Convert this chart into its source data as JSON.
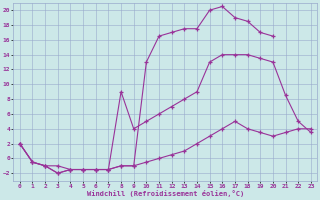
{
  "xlabel": "Windchill (Refroidissement éolien,°C)",
  "bg_color": "#cce8e8",
  "line_color": "#993399",
  "grid_color": "#99aacc",
  "xlim": [
    -0.5,
    23.5
  ],
  "ylim": [
    -3,
    21
  ],
  "xticks": [
    0,
    1,
    2,
    3,
    4,
    5,
    6,
    7,
    8,
    9,
    10,
    11,
    12,
    13,
    14,
    15,
    16,
    17,
    18,
    19,
    20,
    21,
    22,
    23
  ],
  "yticks": [
    -2,
    0,
    2,
    4,
    6,
    8,
    10,
    12,
    14,
    16,
    18,
    20
  ],
  "line1_x": [
    0,
    1,
    2,
    3,
    4,
    5,
    6,
    7,
    8,
    9,
    10,
    11,
    12,
    13,
    14,
    15,
    16,
    17,
    18,
    19,
    20,
    21,
    22,
    23
  ],
  "line1_y": [
    2,
    -0.5,
    -1,
    -2,
    -1.5,
    -1.5,
    -1.5,
    -1.5,
    -1,
    -1,
    -0.5,
    0,
    0.5,
    1,
    2,
    3,
    4,
    5,
    4,
    3.5,
    3,
    3.5,
    4,
    4
  ],
  "line2_x": [
    0,
    1,
    2,
    3,
    4,
    5,
    6,
    7,
    8,
    9,
    10,
    11,
    12,
    13,
    14,
    15,
    16,
    17,
    18,
    19,
    20,
    21,
    22,
    23
  ],
  "line2_y": [
    2,
    -0.5,
    -1,
    -2,
    -1.5,
    -1.5,
    -1.5,
    -1.5,
    9,
    4,
    5,
    6,
    7,
    8,
    9,
    13,
    14,
    14,
    14,
    13.5,
    13,
    8.5,
    5,
    3.5
  ],
  "line3_x": [
    0,
    1,
    2,
    3,
    4,
    5,
    6,
    7,
    8,
    9,
    10,
    11,
    12,
    13,
    14,
    15,
    16,
    17,
    18,
    19,
    20
  ],
  "line3_y": [
    2,
    -0.5,
    -1,
    -1,
    -1.5,
    -1.5,
    -1.5,
    -1.5,
    -1,
    -1,
    13,
    16.5,
    17,
    17.5,
    17.5,
    20,
    20.5,
    19,
    18.5,
    17,
    16.5
  ]
}
